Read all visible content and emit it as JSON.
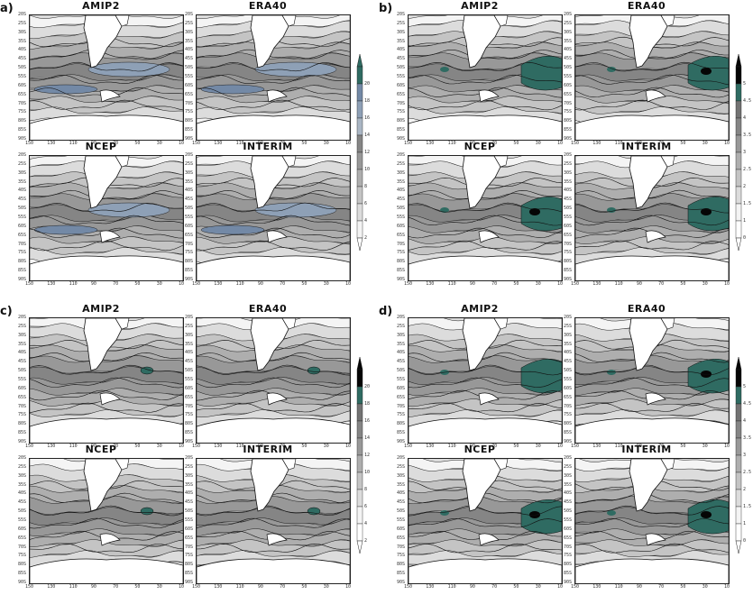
{
  "quadrants": [
    {
      "label": "a)",
      "palette": "blue",
      "colorbar_ticks": [
        "2",
        "4",
        "6",
        "8",
        "10",
        "12",
        "14",
        "16",
        "18",
        "20"
      ],
      "colorbar_ticks_display": [
        "2",
        "4",
        "6",
        "8",
        "10",
        "12",
        "14",
        "16",
        "18",
        "20"
      ],
      "panels": [
        {
          "title": "AMIP2",
          "key": "amip"
        },
        {
          "title": "ERA40",
          "key": "era"
        },
        {
          "title": "NCEP",
          "key": "ncep"
        },
        {
          "title": "INTERIM",
          "key": "int"
        }
      ]
    },
    {
      "label": "b)",
      "palette": "teal",
      "colorbar_ticks": [
        "0",
        "1",
        "1.5",
        "2",
        "2.5",
        "3",
        "3.5",
        "4",
        "4.5",
        "5"
      ],
      "panels": [
        {
          "title": "AMIP2",
          "key": "amip"
        },
        {
          "title": "ERA40",
          "key": "era"
        },
        {
          "title": "NCEP",
          "key": "ncep"
        },
        {
          "title": "INTERIM",
          "key": "int"
        }
      ]
    },
    {
      "label": "c)",
      "palette": "teal",
      "colorbar_ticks": [
        "2",
        "4",
        "6",
        "8",
        "10",
        "12",
        "14",
        "16",
        "18",
        "20"
      ],
      "panels": [
        {
          "title": "AMIP2",
          "key": "amip"
        },
        {
          "title": "ERA40",
          "key": "era"
        },
        {
          "title": "NCEP",
          "key": "ncep"
        },
        {
          "title": "INTERIM",
          "key": "int"
        }
      ]
    },
    {
      "label": "d)",
      "palette": "teal",
      "colorbar_ticks": [
        "0",
        "1",
        "1.5",
        "2",
        "2.5",
        "3",
        "3.5",
        "4",
        "4.5",
        "5"
      ],
      "panels": [
        {
          "title": "AMIP2",
          "key": "amip"
        },
        {
          "title": "ERA40",
          "key": "era"
        },
        {
          "title": "NCEP",
          "key": "ncep"
        },
        {
          "title": "INTERIM",
          "key": "int"
        }
      ]
    }
  ],
  "lat_labels": [
    "20S",
    "25S",
    "30S",
    "35S",
    "40S",
    "45S",
    "50S",
    "55S",
    "60S",
    "65S",
    "70S",
    "75S",
    "80S",
    "85S",
    "90S"
  ],
  "lon_labels": [
    "150",
    "130",
    "110",
    "90",
    "70",
    "50",
    "30",
    "10"
  ],
  "colors": {
    "c1": "#f4f4f4",
    "c2": "#dcdcdc",
    "c3": "#c4c4c4",
    "c4": "#aeaeae",
    "c5": "#989898",
    "c6": "#858585",
    "c7": "#737373",
    "blue1": "#aab6c4",
    "blue2": "#8ea0b6",
    "blue3": "#7389a6",
    "teal": "#2f6b62",
    "black": "#050505",
    "land": "#ffffff"
  }
}
